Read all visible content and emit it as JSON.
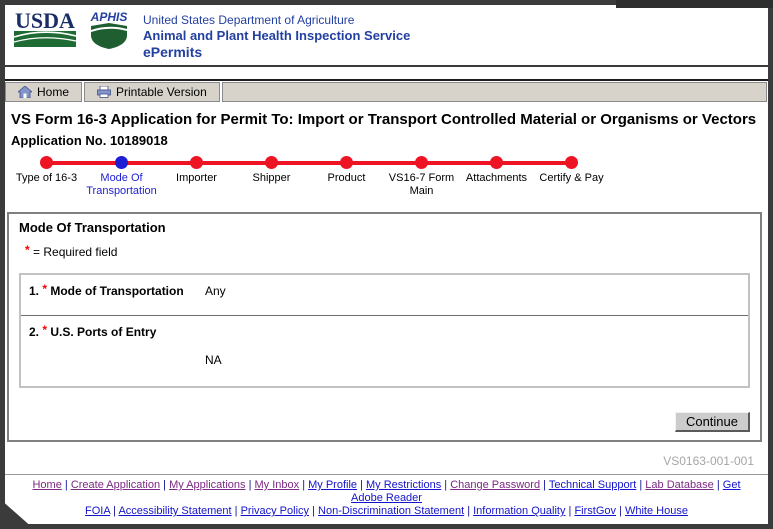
{
  "colors": {
    "red": "#ee1423",
    "active_blue": "#1e1ed2",
    "link_blue": "#1414cc",
    "link_visited": "#7b2982",
    "header_blue": "#2340a0"
  },
  "header": {
    "usda_logo_text": "USDA",
    "aphis_logo_text": "APHIS",
    "dept_line": "United States Department of Agriculture",
    "agency_line": "Animal and Plant Health Inspection Service",
    "app_line": "ePermits"
  },
  "toolbar": {
    "home_label": "Home",
    "printable_label": "Printable Version"
  },
  "page": {
    "title": "VS Form 16-3 Application for Permit To: Import or Transport Controlled Material or Organisms or Vectors",
    "application_no": "Application No. 10189018"
  },
  "stepper": {
    "steps": [
      {
        "label": "Type of 16-3",
        "active": false
      },
      {
        "label": "Mode Of Transportation",
        "active": true
      },
      {
        "label": "Importer",
        "active": false
      },
      {
        "label": "Shipper",
        "active": false
      },
      {
        "label": "Product",
        "active": false
      },
      {
        "label": "VS16-7 Form Main",
        "active": false
      },
      {
        "label": "Attachments",
        "active": false
      },
      {
        "label": "Certify & Pay",
        "active": false
      }
    ]
  },
  "section": {
    "heading": "Mode Of Transportation",
    "required_symbol": "*",
    "required_text": "= Required field",
    "fields": [
      {
        "number": "1.",
        "required_mark": "*",
        "label": "Mode of Transportation",
        "value": "Any",
        "value_layout": "inline"
      },
      {
        "number": "2.",
        "required_mark": "*",
        "label": "U.S. Ports of Entry",
        "value": "NA",
        "value_layout": "below"
      }
    ],
    "continue_label": "Continue"
  },
  "form_code": "VS0163-001-001",
  "footer": {
    "separator": "|",
    "row1": [
      {
        "label": "Home",
        "visited": true
      },
      {
        "label": "Create Application",
        "visited": true
      },
      {
        "label": "My Applications",
        "visited": true
      },
      {
        "label": "My Inbox",
        "visited": true
      },
      {
        "label": "My Profile",
        "visited": false
      },
      {
        "label": "My Restrictions",
        "visited": false
      },
      {
        "label": "Change Password",
        "visited": true
      },
      {
        "label": "Technical Support",
        "visited": false
      },
      {
        "label": "Lab Database",
        "visited": true
      },
      {
        "label": "Get Adobe Reader",
        "visited": false
      }
    ],
    "row2": [
      {
        "label": "FOIA",
        "visited": false
      },
      {
        "label": "Accessibility Statement",
        "visited": false
      },
      {
        "label": "Privacy Policy",
        "visited": false
      },
      {
        "label": "Non-Discrimination Statement",
        "visited": false
      },
      {
        "label": "Information Quality",
        "visited": false
      },
      {
        "label": "FirstGov",
        "visited": false
      },
      {
        "label": "White House",
        "visited": false
      }
    ]
  }
}
